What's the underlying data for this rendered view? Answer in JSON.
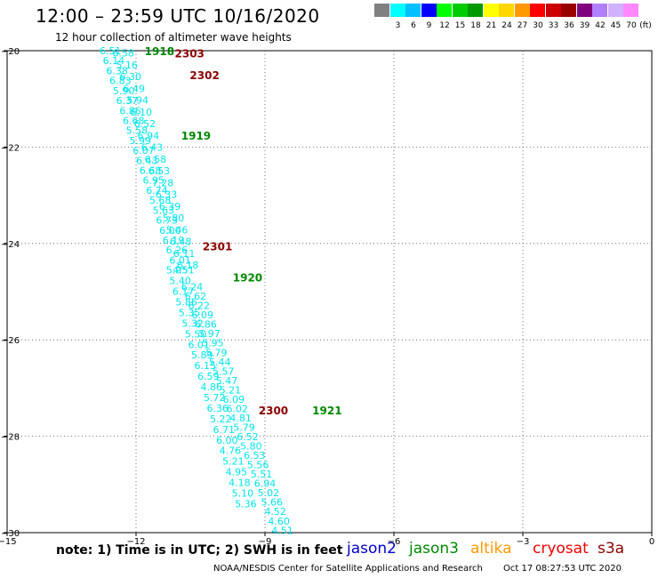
{
  "header": {
    "title": "12:00 – 23:59 UTC 10/16/2020",
    "subtitle": "12 hour collection of altimeter wave heights"
  },
  "legend": {
    "unit": "(ft)",
    "swatches": [
      {
        "color": "#808080",
        "label": ""
      },
      {
        "color": "#00ffff",
        "label": "3"
      },
      {
        "color": "#00c0ff",
        "label": "6"
      },
      {
        "color": "#0000ff",
        "label": "9"
      },
      {
        "color": "#00ff00",
        "label": "12"
      },
      {
        "color": "#00cc00",
        "label": "15"
      },
      {
        "color": "#009900",
        "label": "18"
      },
      {
        "color": "#ffff00",
        "label": "21"
      },
      {
        "color": "#ffd700",
        "label": "24"
      },
      {
        "color": "#ff9900",
        "label": "27"
      },
      {
        "color": "#ff0000",
        "label": "30"
      },
      {
        "color": "#cc0000",
        "label": "33"
      },
      {
        "color": "#990000",
        "label": "36"
      },
      {
        "color": "#800080",
        "label": "39"
      },
      {
        "color": "#b080ff",
        "label": "42"
      },
      {
        "color": "#d0b0ff",
        "label": "45"
      },
      {
        "color": "#ff88ff",
        "label": "70"
      }
    ]
  },
  "map": {
    "lon_range": [
      -15,
      0
    ],
    "lat_range": [
      -30,
      -20
    ],
    "x_ticks": [
      {
        "value": -15,
        "label": "−15"
      },
      {
        "value": -12,
        "label": "−12"
      },
      {
        "value": -9,
        "label": "−9"
      },
      {
        "value": -6,
        "label": "−6"
      },
      {
        "value": -3,
        "label": "−3"
      },
      {
        "value": 0,
        "label": "0"
      }
    ],
    "y_ticks": [
      {
        "value": -20,
        "label": "−20"
      },
      {
        "value": -22,
        "label": "−22"
      },
      {
        "value": -24,
        "label": "−24"
      },
      {
        "value": -26,
        "label": "−26"
      },
      {
        "value": -28,
        "label": "−28"
      },
      {
        "value": -30,
        "label": "−30"
      }
    ],
    "point_color": "#00e5ee",
    "track1_start": [
      -12.85,
      -20.0
    ],
    "track1_end": [
      -11.15,
      -24.55
    ],
    "track1_values": [
      "6.51",
      "6.14",
      "6.38",
      "6.83",
      "5.90",
      "6.37",
      "6.86",
      "6.68",
      "5.58",
      "5.99",
      "6.07",
      "6.43",
      "6.68",
      "6.95",
      "6.74",
      "5.68",
      "5.63",
      "6.73",
      "6.00",
      "6.19",
      "6.26",
      "6.01",
      "4.51"
    ],
    "track1b_values": [
      "6.58",
      "5.16",
      "6.30",
      "6.49",
      "5.94",
      "6.10",
      "6.52",
      "6.94",
      "6.43",
      "6.58",
      "6.53",
      "7.28",
      "6.33",
      "6.39",
      "5.80",
      "5.46",
      "6.48",
      "6.11",
      "6.18"
    ],
    "track2_start": [
      -11.3,
      -24.55
    ],
    "track2_end": [
      -9.7,
      -29.4
    ],
    "track2_values": [
      "5.95",
      "5.40",
      "6.17",
      "5.86",
      "5.35",
      "5.32",
      "5.50",
      "6.01",
      "5.89",
      "6.15",
      "6.59",
      "4.86",
      "5.72",
      "6.36",
      "5.22",
      "6.71",
      "6.00",
      "4.76",
      "5.21",
      "4.95",
      "4.18",
      "5.10",
      "5.36"
    ],
    "track3_start": [
      -10.95,
      -24.9
    ],
    "track3_end": [
      -8.85,
      -29.95
    ],
    "track3_values": [
      "6.24",
      "6.62",
      "6.22",
      "6.09",
      "6.86",
      "5.97",
      "5.95",
      "5.79",
      "5.44",
      "5.57",
      "5.47",
      "5.21",
      "6.09",
      "6.02",
      "4.81",
      "5.79",
      "6.52",
      "5.80",
      "6.53",
      "5.56",
      "5.51",
      "6.94",
      "5.02",
      "5.66",
      "4.52",
      "4.60",
      "4.51"
    ],
    "time_labels": [
      {
        "text": "1918",
        "lon": -11.8,
        "lat": -20.0,
        "color": "#008800"
      },
      {
        "text": "2303",
        "lon": -11.1,
        "lat": -20.05,
        "color": "#8b0000"
      },
      {
        "text": "2302",
        "lon": -10.75,
        "lat": -20.5,
        "color": "#8b0000"
      },
      {
        "text": "1919",
        "lon": -10.95,
        "lat": -21.75,
        "color": "#008800"
      },
      {
        "text": "2301",
        "lon": -10.45,
        "lat": -24.05,
        "color": "#8b0000"
      },
      {
        "text": "1920",
        "lon": -9.75,
        "lat": -24.7,
        "color": "#008800"
      },
      {
        "text": "2300",
        "lon": -9.15,
        "lat": -27.45,
        "color": "#8b0000"
      },
      {
        "text": "1921",
        "lon": -7.9,
        "lat": -27.45,
        "color": "#008800"
      }
    ]
  },
  "note": "note:  1) Time is in UTC;  2) SWH is in feet",
  "satellites": [
    {
      "name": "jason2",
      "color": "#0000cc"
    },
    {
      "name": "jason3",
      "color": "#008800"
    },
    {
      "name": "altika",
      "color": "#ff9900"
    },
    {
      "name": "cryosat",
      "color": "#ee0000"
    },
    {
      "name": "s3a",
      "color": "#8b0000"
    }
  ],
  "footer": {
    "agency": "NOAA/NESDIS Center for Satellite Applications and Research",
    "timestamp": "Oct 17 08:27:53 UTC 2020"
  }
}
